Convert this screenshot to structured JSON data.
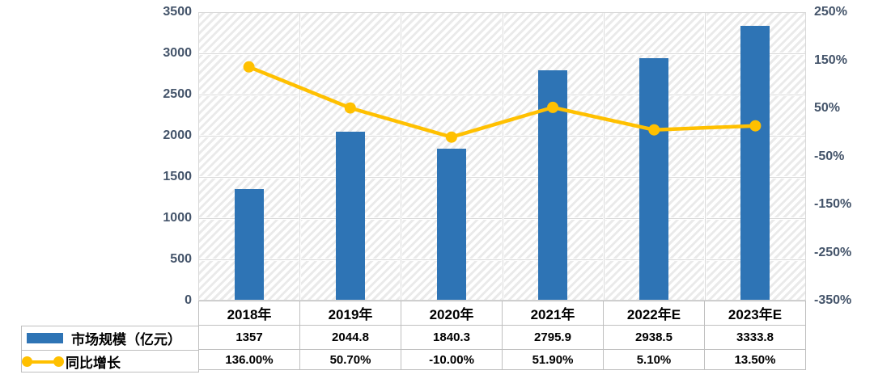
{
  "colors": {
    "bar": "#2E74B5",
    "line": "#FFC000",
    "axis_text": "#44546A",
    "gridline": "#D9D9D9",
    "hatch": "#EAEAEA",
    "table_border": "#BFBFBF",
    "table_text": "#000000"
  },
  "chart_data": {
    "type": "combo",
    "title": "",
    "xlabel": "",
    "ylabel": "",
    "grid": true,
    "plot_background": "diagonal-hatch",
    "legend_position": "table-left",
    "categories": [
      "2018年",
      "2019年",
      "2020年",
      "2021年",
      "2022年E",
      "2023年E"
    ],
    "series": [
      {
        "name": "市场规模（亿元）",
        "type": "bar",
        "axis": "left",
        "color": "#2E74B5",
        "values": [
          1357,
          2044.8,
          1840.3,
          2795.9,
          2938.5,
          3333.8
        ],
        "labels": [
          "1357",
          "2044.8",
          "1840.3",
          "2795.9",
          "2938.5",
          "3333.8"
        ]
      },
      {
        "name": "同比增长",
        "type": "line",
        "axis": "right",
        "color": "#FFC000",
        "values": [
          136.0,
          50.7,
          -10.0,
          51.9,
          5.1,
          13.5
        ],
        "labels": [
          "136.00%",
          "50.70%",
          "-10.00%",
          "51.90%",
          "5.10%",
          "13.50%"
        ]
      }
    ],
    "left_axis": {
      "min": 0,
      "max": 3500,
      "step": 500,
      "labels": [
        "0",
        "500",
        "1000",
        "1500",
        "2000",
        "2500",
        "3000",
        "3500"
      ]
    },
    "right_axis": {
      "min": -350,
      "max": 250,
      "step": 100,
      "labels": [
        "250%",
        "150%",
        "50%",
        "-50%",
        "-150%",
        "-250%",
        "-350%"
      ]
    }
  }
}
